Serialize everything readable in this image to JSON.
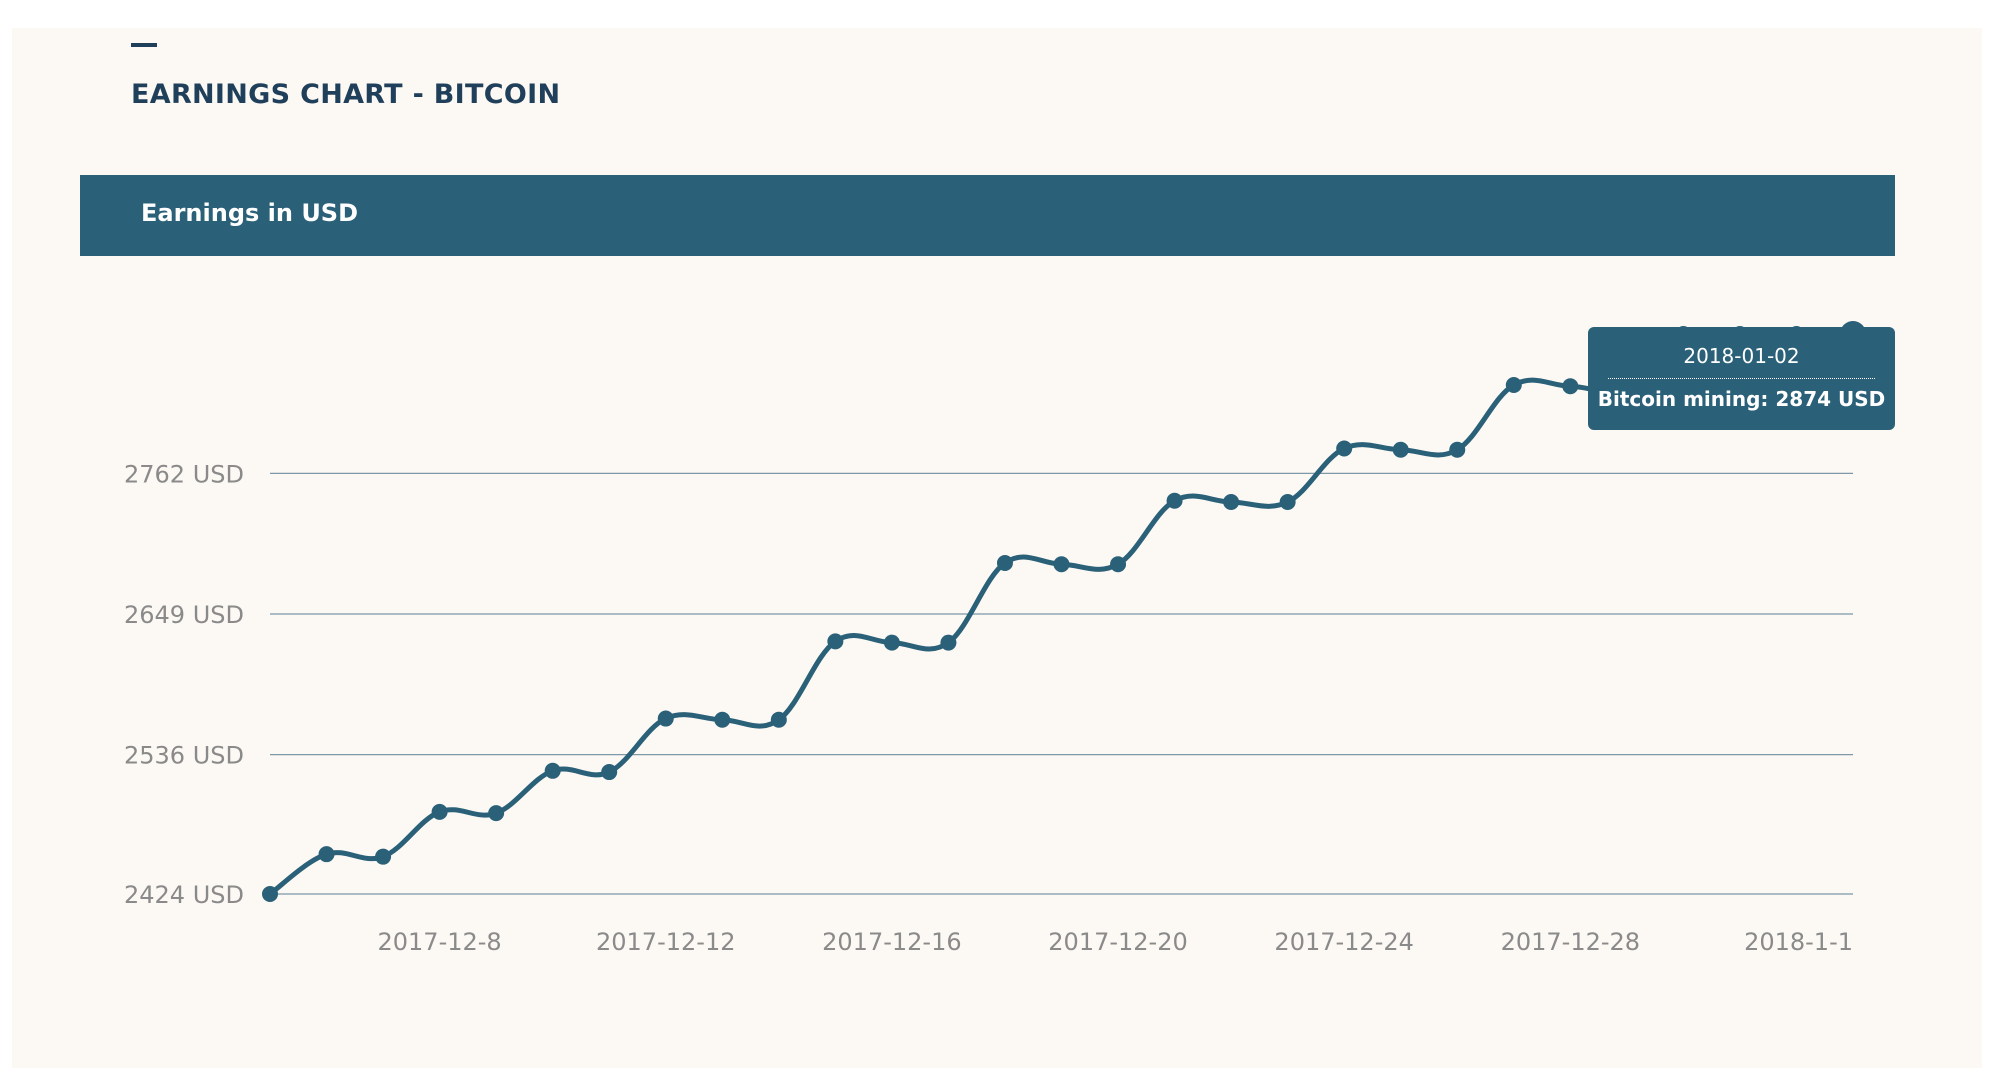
{
  "header": {
    "title": "EARNINGS CHART - BITCOIN",
    "band_label": "Earnings in USD"
  },
  "tooltip": {
    "date": "2018-01-02",
    "label": "Bitcoin mining: 2874 USD"
  },
  "colors": {
    "accent": "#2a6078",
    "title": "#1f3f5a",
    "background": "#fcf9f4",
    "grid": "#7d98a6",
    "tick_text": "#8a8a8a"
  },
  "chart_data": {
    "type": "line",
    "title": "EARNINGS CHART - BITCOIN",
    "subtitle": "Earnings in USD",
    "xlabel": "",
    "ylabel": "",
    "x": [
      "2017-12-05",
      "2017-12-06",
      "2017-12-07",
      "2017-12-08",
      "2017-12-09",
      "2017-12-10",
      "2017-12-11",
      "2017-12-12",
      "2017-12-13",
      "2017-12-14",
      "2017-12-15",
      "2017-12-16",
      "2017-12-17",
      "2017-12-18",
      "2017-12-19",
      "2017-12-20",
      "2017-12-21",
      "2017-12-22",
      "2017-12-23",
      "2017-12-24",
      "2017-12-25",
      "2017-12-26",
      "2017-12-27",
      "2017-12-28",
      "2017-12-29",
      "2017-12-30",
      "2017-12-31",
      "2018-01-01",
      "2018-01-02"
    ],
    "series": [
      {
        "name": "Bitcoin mining",
        "values": [
          2424,
          2456,
          2454,
          2490,
          2489,
          2523,
          2522,
          2565,
          2564,
          2564,
          2627,
          2626,
          2626,
          2690,
          2689,
          2689,
          2740,
          2739,
          2739,
          2782,
          2781,
          2781,
          2833,
          2832,
          2831,
          2874,
          2874,
          2874,
          2874
        ]
      }
    ],
    "yticks": [
      {
        "value": 2424,
        "label": "2424 USD"
      },
      {
        "value": 2536,
        "label": "2536 USD"
      },
      {
        "value": 2649,
        "label": "2649 USD"
      },
      {
        "value": 2762,
        "label": "2762 USD"
      }
    ],
    "xticks": [
      {
        "value": "2017-12-08",
        "label": "2017-12-8"
      },
      {
        "value": "2017-12-12",
        "label": "2017-12-12"
      },
      {
        "value": "2017-12-16",
        "label": "2017-12-16"
      },
      {
        "value": "2017-12-20",
        "label": "2017-12-20"
      },
      {
        "value": "2017-12-24",
        "label": "2017-12-24"
      },
      {
        "value": "2017-12-28",
        "label": "2017-12-28"
      },
      {
        "value": "2018-01-01",
        "label": "2018-1-1"
      }
    ],
    "ylim": [
      2424,
      2874
    ],
    "grid": true,
    "highlighted_point": "2018-01-02"
  }
}
